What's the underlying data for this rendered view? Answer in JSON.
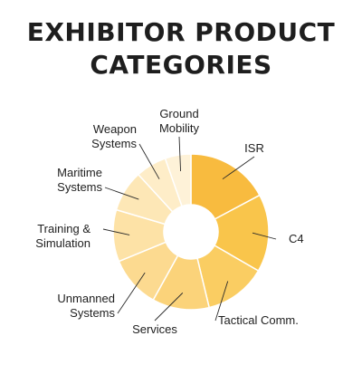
{
  "title_line1": "EXHIBITOR PRODUCT",
  "title_line2": "CATEGORIES",
  "chart_data": {
    "type": "pie",
    "donut": true,
    "legend": "none",
    "categories": [
      "ISR",
      "C4",
      "Tactical Comm.",
      "Services",
      "Unmanned Systems",
      "Training & Simulation",
      "Maritime Systems",
      "Weapon Systems",
      "Ground Mobility"
    ],
    "display_labels": [
      [
        "ISR"
      ],
      [
        "C4"
      ],
      [
        "Tactical Comm."
      ],
      [
        "Services"
      ],
      [
        "Unmanned",
        "Systems"
      ],
      [
        "Training &",
        "Simulation"
      ],
      [
        "Maritime",
        "Systems"
      ],
      [
        "Weapon",
        "Systems"
      ],
      [
        "Ground",
        "Mobility"
      ]
    ],
    "values": [
      16,
      15,
      12,
      11,
      10,
      10,
      8,
      6,
      5
    ],
    "colors": [
      "#F8BB3F",
      "#F9C54B",
      "#FACD62",
      "#FBD37A",
      "#FCDA90",
      "#FDE2A6",
      "#FDE7B6",
      "#FEEDC8",
      "#FEF2D8"
    ]
  }
}
